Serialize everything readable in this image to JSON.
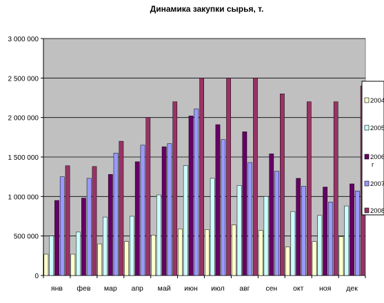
{
  "chart_data": {
    "type": "bar",
    "title": "Динамика закупки сырья, т.",
    "xlabel": "",
    "ylabel": "",
    "ylim": [
      0,
      3000000
    ],
    "yticks": [
      0,
      500000,
      1000000,
      1500000,
      2000000,
      2500000,
      3000000
    ],
    "ytick_labels": [
      "0",
      "500 000",
      "1 000 000",
      "1 500 000",
      "2 000 000",
      "2 500 000",
      "3 000 000"
    ],
    "categories": [
      "янв",
      "фев",
      "мар",
      "апр",
      "май",
      "июн",
      "июл",
      "авг",
      "сен",
      "окт",
      "ноя",
      "дек"
    ],
    "grid": true,
    "legend_position": "right",
    "series": [
      {
        "name": "2004",
        "color": "#FFFFCC",
        "values": [
          270000,
          270000,
          400000,
          430000,
          510000,
          590000,
          580000,
          640000,
          570000,
          360000,
          430000,
          490000
        ]
      },
      {
        "name": "2005",
        "color": "#CCFFFF",
        "values": [
          500000,
          550000,
          740000,
          750000,
          1020000,
          1390000,
          1230000,
          1140000,
          1000000,
          810000,
          760000,
          880000
        ]
      },
      {
        "name": "2006 г",
        "color": "#660066",
        "values": [
          950000,
          980000,
          1280000,
          1440000,
          1630000,
          2020000,
          1910000,
          1820000,
          1540000,
          1230000,
          1120000,
          1160000
        ]
      },
      {
        "name": "2007",
        "color": "#9999FF",
        "values": [
          1250000,
          1230000,
          1550000,
          1650000,
          1670000,
          2110000,
          1720000,
          1430000,
          1320000,
          1130000,
          930000,
          1070000
        ]
      },
      {
        "name": "2008",
        "color": "#993366",
        "values": [
          1390000,
          1380000,
          1700000,
          2000000,
          2200000,
          2500000,
          2500000,
          2500000,
          2300000,
          2200000,
          2200000,
          2400000
        ]
      }
    ]
  }
}
